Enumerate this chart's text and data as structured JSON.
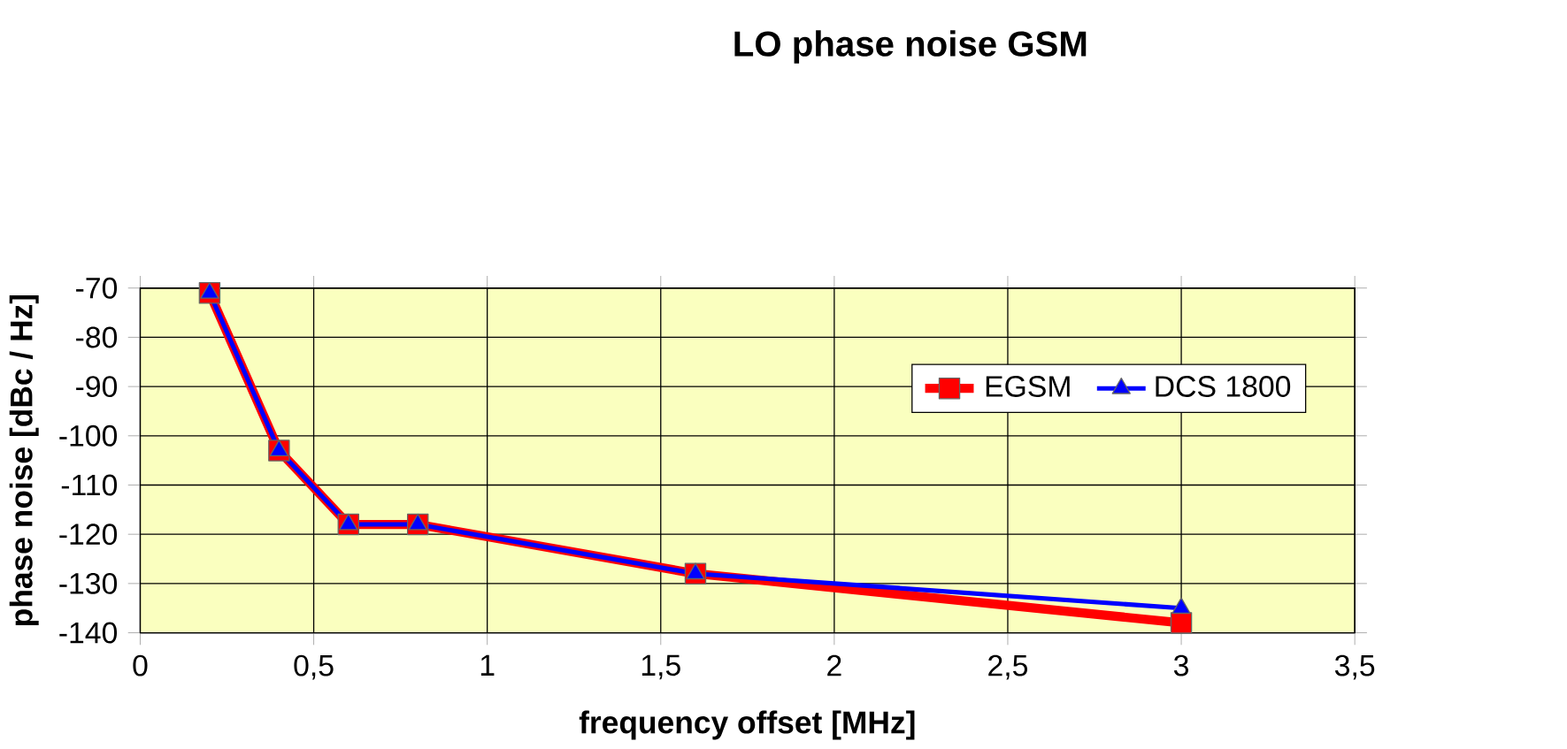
{
  "chart_data": {
    "type": "line",
    "title": "LO phase noise GSM",
    "xlabel": "frequency offset [MHz]",
    "ylabel": "phase noise [dBc / Hz]",
    "series": [
      {
        "name": "EGSM",
        "color": "#ff0000",
        "marker": "square",
        "x": [
          0.2,
          0.4,
          0.6,
          0.8,
          1.6,
          3
        ],
        "values": [
          -71,
          -103,
          -118,
          -118,
          -128,
          -138
        ]
      },
      {
        "name": "DCS 1800",
        "color": "#0000ff",
        "marker": "triangle",
        "x": [
          0.2,
          0.4,
          0.6,
          0.8,
          1.6,
          3
        ],
        "values": [
          -71,
          -103,
          -118,
          -118,
          -128,
          -135
        ]
      }
    ],
    "xlim": [
      0,
      3.5
    ],
    "ylim": [
      -140,
      -70
    ],
    "xticks": [
      0,
      {
        "value": 0.5,
        "label": "0,5"
      },
      1,
      {
        "value": 1.5,
        "label": "1,5"
      },
      2,
      {
        "value": 2.5,
        "label": "2,5"
      },
      3,
      {
        "value": 3.5,
        "label": "3,5"
      }
    ],
    "yticks": [
      -70,
      -80,
      -90,
      -100,
      -110,
      -120,
      -130,
      -140
    ],
    "grid": true,
    "legend": "top right"
  }
}
